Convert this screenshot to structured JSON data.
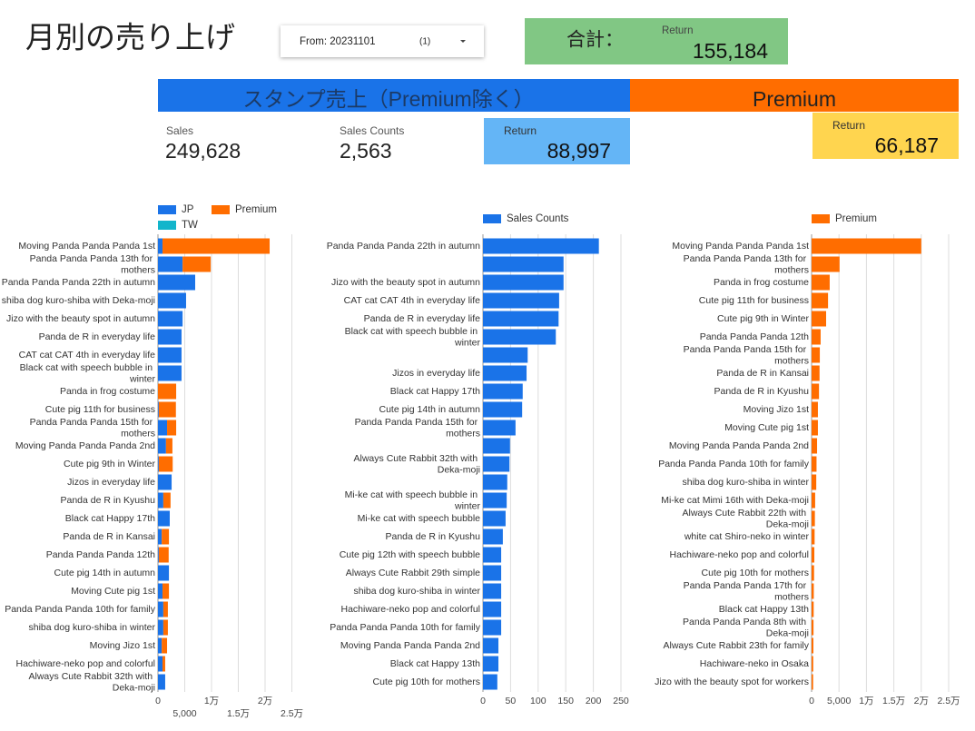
{
  "header": {
    "title": "月別の売り上げ",
    "filter_label": "From: 20231101",
    "filter_count": "(1)"
  },
  "total": {
    "label": "合計：",
    "sub_label": "Return",
    "value": "155,184"
  },
  "sections": [
    {
      "title": "スタンプ売上（Premium除く）"
    },
    {
      "title": "Premium"
    }
  ],
  "scorecards": [
    {
      "label": "Sales",
      "value": "249,628"
    },
    {
      "label": "Sales Counts",
      "value": "2,563"
    },
    {
      "label": "Return",
      "value": "88,997"
    },
    {
      "label": "Return",
      "value": "66,187"
    }
  ],
  "chart_data": [
    {
      "type": "bar",
      "orientation": "horizontal",
      "stacked": true,
      "grid": true,
      "legend": "top",
      "categories": [
        "Moving Panda Panda Panda 1st",
        "Panda Panda Panda 13th for mothers",
        "Panda Panda Panda 22th in autumn",
        "shiba dog kuro-shiba with Deka-moji",
        "Jizo with the beauty spot in autumn",
        "Panda de R in everyday life",
        "CAT cat CAT 4th in everyday life",
        "Black cat with speech bubble in winter",
        "Panda in frog costume",
        "Cute pig 11th for business",
        "Panda Panda Panda 15th for mothers",
        "Moving Panda Panda Panda 2nd",
        "Cute pig 9th in Winter",
        "Jizos in everyday life",
        "Panda de R in Kyushu",
        "Black cat Happy 17th",
        "Panda de R in Kansai",
        "Panda Panda Panda 12th",
        "Cute pig 14th in autumn",
        "Moving Cute pig 1st",
        "Panda Panda Panda 10th for family",
        "shiba dog kuro-shiba in winter",
        "Moving Jizo 1st",
        "Hachiware-neko pop and colorful",
        "Always Cute Rabbit 32th with Deka-moji"
      ],
      "series": [
        {
          "name": "JP",
          "color": "#1a73e8",
          "values": [
            850,
            4600,
            6950,
            5250,
            4600,
            4400,
            4400,
            4400,
            0,
            150,
            1700,
            1500,
            150,
            2550,
            1000,
            2200,
            700,
            150,
            2050,
            850,
            1000,
            1000,
            700,
            850,
            1350
          ]
        },
        {
          "name": "Premium",
          "color": "#ff6d00",
          "values": [
            20000,
            5250,
            0,
            0,
            0,
            0,
            0,
            0,
            3400,
            3200,
            1700,
            1200,
            2600,
            0,
            1350,
            0,
            1350,
            1850,
            0,
            1200,
            850,
            850,
            1000,
            500,
            0
          ]
        },
        {
          "name": "TW",
          "color": "#12b5cb",
          "values": [
            0,
            0,
            0,
            0,
            0,
            0,
            0,
            0,
            0,
            0,
            0,
            0,
            0,
            0,
            0,
            0,
            0,
            0,
            0,
            0,
            0,
            0,
            0,
            0,
            0
          ]
        }
      ],
      "xlim": [
        0,
        25000
      ],
      "xticks": [
        0,
        {
          "value": 5000,
          "label": "5,000"
        },
        {
          "value": 10000,
          "label": "1万"
        },
        {
          "value": 15000,
          "label": "1.5万"
        },
        {
          "value": 20000,
          "label": "2万"
        },
        {
          "value": 25000,
          "label": "2.5万"
        }
      ]
    },
    {
      "type": "bar",
      "orientation": "horizontal",
      "stacked": false,
      "grid": true,
      "legend": "top",
      "categories": [
        "Panda Panda Panda 22th in autumn",
        null,
        "Jizo with the beauty spot in autumn",
        "CAT cat CAT 4th in everyday life",
        "Panda de R in everyday life",
        "Black cat with speech bubble in winter",
        null,
        "Jizos in everyday life",
        "Black cat Happy 17th",
        "Cute pig 14th in autumn",
        "Panda Panda Panda 15th for mothers",
        null,
        "Always Cute Rabbit 32th with Deka-moji",
        null,
        "Mi-ke cat with speech bubble in winter",
        "Mi-ke cat with speech bubble",
        "Panda de R in Kyushu",
        "Cute pig 12th with speech bubble",
        "Always Cute Rabbit 29th simple",
        "shiba dog kuro-shiba in winter",
        "Hachiware-neko pop and colorful",
        "Panda Panda Panda 10th for family",
        "Moving Panda Panda Panda 2nd",
        "Black cat Happy 13th",
        "Cute pig 10th for mothers"
      ],
      "series": [
        {
          "name": "Sales Counts",
          "color": "#1a73e8",
          "values": [
            210,
            146,
            146,
            138,
            137,
            132,
            81,
            79,
            72,
            71,
            59,
            49,
            48,
            44,
            43,
            41,
            36,
            33,
            33,
            33,
            33,
            33,
            28,
            28,
            26
          ]
        }
      ],
      "xlim": [
        0,
        250
      ],
      "xticks": [
        0,
        50,
        100,
        150,
        200,
        250
      ]
    },
    {
      "type": "bar",
      "orientation": "horizontal",
      "stacked": false,
      "grid": true,
      "legend": "top",
      "categories": [
        "Moving Panda Panda Panda 1st",
        "Panda Panda Panda 13th for mothers",
        "Panda in frog costume",
        "Cute pig 11th for business",
        "Cute pig 9th in Winter",
        "Panda Panda Panda 12th",
        "Panda Panda Panda 15th for mothers",
        "Panda de R in Kansai",
        "Panda de R in Kyushu",
        "Moving Jizo 1st",
        "Moving Cute pig 1st",
        "Moving Panda Panda Panda 2nd",
        "Panda Panda Panda 10th for family",
        "shiba dog kuro-shiba in winter",
        "Mi-ke cat Mimi 16th with Deka-moji",
        "Always Cute Rabbit 22th with Deka-moji",
        "white cat Shiro-neko in winter",
        "Hachiware-neko pop and colorful",
        "Cute pig 10th for mothers",
        "Panda Panda Panda 17th for mothers",
        "Black cat Happy 13th",
        "Panda Panda Panda 8th with Deka-moji",
        "Always Cute Rabbit 23th for family",
        "Hachiware-neko in Osaka",
        "Jizo with the beauty spot for workers"
      ],
      "series": [
        {
          "name": "Premium",
          "color": "#ff6d00",
          "values": [
            20000,
            5100,
            3300,
            3000,
            2650,
            1650,
            1500,
            1450,
            1350,
            1150,
            1150,
            1000,
            900,
            850,
            650,
            600,
            550,
            500,
            450,
            400,
            380,
            350,
            330,
            300,
            280
          ]
        }
      ],
      "xlim": [
        0,
        25000
      ],
      "xticks": [
        0,
        {
          "value": 5000,
          "label": "5,000"
        },
        {
          "value": 10000,
          "label": "1万"
        },
        {
          "value": 15000,
          "label": "1.5万"
        },
        {
          "value": 20000,
          "label": "2万"
        },
        {
          "value": 25000,
          "label": "2.5万"
        }
      ]
    }
  ]
}
